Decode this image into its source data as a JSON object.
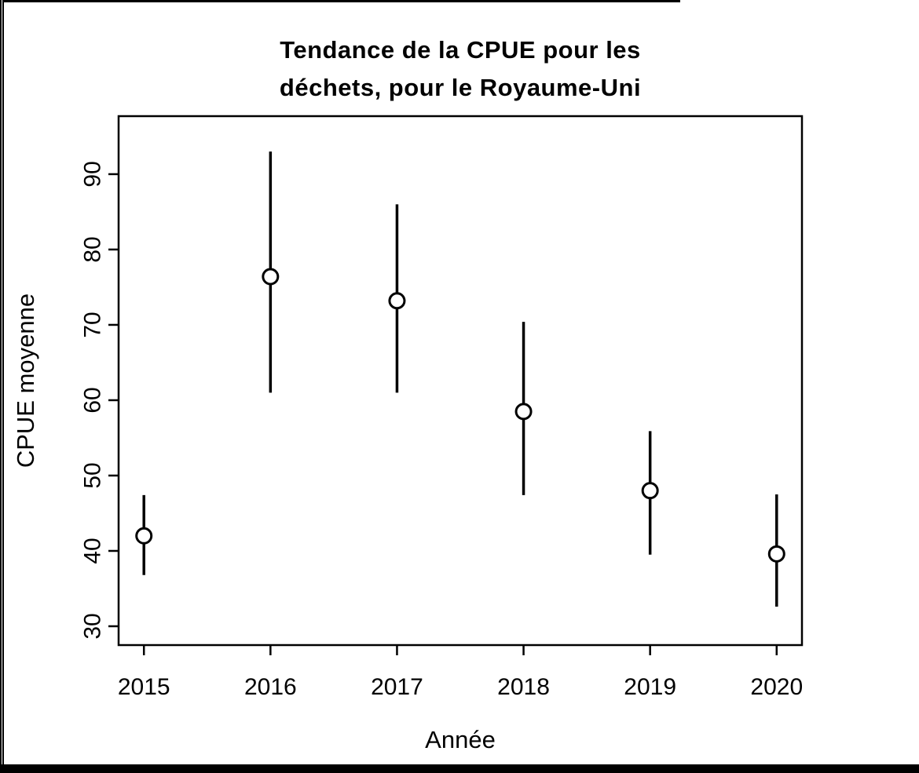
{
  "title_lines": [
    "Tendance de la CPUE pour les",
    "déchets, pour le Royaume-Uni"
  ],
  "chart_data": {
    "type": "scatter",
    "title": "Tendance de la CPUE pour les déchets, pour le Royaume-Uni",
    "xlabel": "Année",
    "ylabel": "CPUE moyenne",
    "categories": [
      2015,
      2016,
      2017,
      2018,
      2019,
      2020
    ],
    "series": [
      {
        "name": "CPUE moyenne",
        "values": [
          42.0,
          76.4,
          73.2,
          58.5,
          48.0,
          39.6
        ]
      }
    ],
    "error_bars": {
      "lower": [
        36.8,
        61.0,
        61.0,
        47.4,
        39.5,
        32.6
      ],
      "upper": [
        47.4,
        93.0,
        86.0,
        70.4,
        55.9,
        47.5
      ]
    },
    "y_ticks": [
      30,
      40,
      50,
      60,
      70,
      80,
      90
    ],
    "ylim": [
      27.5,
      97.7
    ],
    "xlim": [
      2014.8,
      2020.2
    ],
    "grid": false,
    "legend": null,
    "point_style": "open-circle",
    "colors": {
      "foreground": "#000000",
      "background": "#ffffff"
    }
  }
}
